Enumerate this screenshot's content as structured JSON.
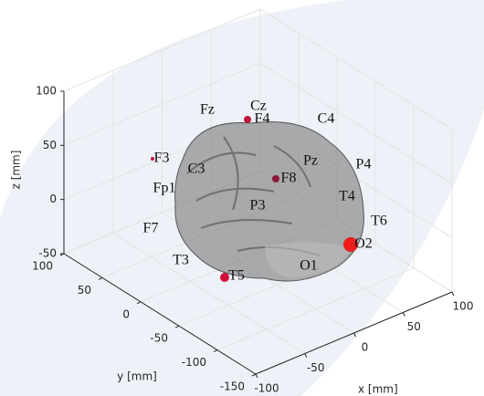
{
  "chart_data": {
    "type": "scatter3d",
    "xlabel": "x [mm]",
    "ylabel": "y [mm]",
    "zlabel": "z [mm]",
    "xlim": [
      -100,
      100
    ],
    "ylim": [
      -150,
      100
    ],
    "zlim": [
      -50,
      100
    ],
    "xticks": [
      -100,
      -50,
      0,
      50,
      100
    ],
    "yticks": [
      -150,
      -100,
      -50,
      0,
      50,
      100
    ],
    "zticks": [
      -50,
      0,
      50,
      100
    ],
    "grid": true,
    "electrodes": [
      "Fz",
      "Cz",
      "F4",
      "C4",
      "F3",
      "C3",
      "Pz",
      "P4",
      "Fp1",
      "F8",
      "P3",
      "T4",
      "F7",
      "T6",
      "O2",
      "T3",
      "T5",
      "O1"
    ]
  }
}
